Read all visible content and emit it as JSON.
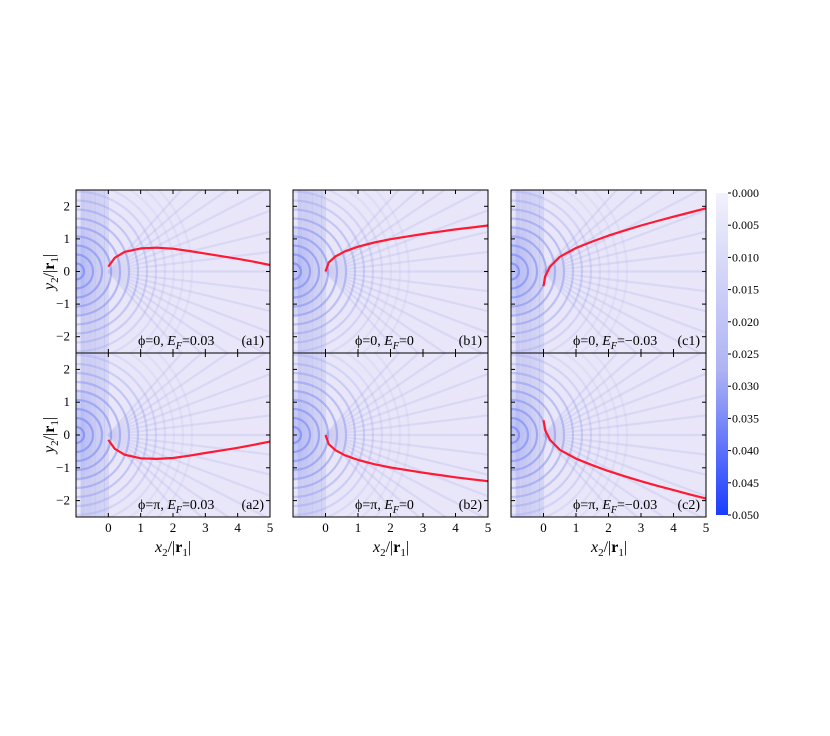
{
  "chart_data": [
    {
      "id": "a1",
      "type": "heatmap",
      "panel_label": "(a1)",
      "annotation": "ϕ=0, E_F=0.03",
      "phi": "0",
      "ef": "0.03",
      "xlim": [
        -1,
        5
      ],
      "ylim": [
        -2.5,
        2.5
      ],
      "x_ticks": [],
      "y_ticks": [
        "-2",
        "-1",
        "0",
        "1",
        "2"
      ],
      "series": [
        {
          "type": "line",
          "color": "#ff1a33",
          "x": [
            0,
            0.2,
            0.5,
            1.0,
            1.5,
            2.0,
            2.5,
            3.0,
            3.5,
            4.0,
            4.5,
            5.0
          ],
          "y": [
            0.15,
            0.42,
            0.6,
            0.71,
            0.73,
            0.7,
            0.63,
            0.55,
            0.47,
            0.39,
            0.3,
            0.2
          ]
        }
      ]
    },
    {
      "id": "a2",
      "type": "heatmap",
      "panel_label": "(a2)",
      "annotation": "ϕ=π, E_F=0.03",
      "phi": "π",
      "ef": "0.03",
      "xlim": [
        -1,
        5
      ],
      "ylim": [
        -2.5,
        2.5
      ],
      "x_ticks": [
        "0",
        "1",
        "2",
        "3",
        "4",
        "5"
      ],
      "y_ticks": [
        "-2",
        "-1",
        "0",
        "1",
        "2"
      ],
      "series": [
        {
          "type": "line",
          "color": "#ff1a33",
          "x": [
            0,
            0.2,
            0.5,
            1.0,
            1.5,
            2.0,
            2.5,
            3.0,
            3.5,
            4.0,
            4.5,
            5.0
          ],
          "y": [
            -0.15,
            -0.42,
            -0.6,
            -0.71,
            -0.73,
            -0.7,
            -0.63,
            -0.55,
            -0.47,
            -0.39,
            -0.3,
            -0.2
          ]
        }
      ]
    },
    {
      "id": "b1",
      "type": "heatmap",
      "panel_label": "(b1)",
      "annotation": "ϕ=0, E_F=0",
      "phi": "0",
      "ef": "0",
      "xlim": [
        -1,
        5
      ],
      "ylim": [
        -2.5,
        2.5
      ],
      "x_ticks": [],
      "y_ticks": [],
      "series": [
        {
          "type": "line",
          "color": "#ff1a33",
          "x": [
            0,
            0.1,
            0.3,
            0.6,
            1.0,
            1.5,
            2.0,
            2.5,
            3.0,
            3.5,
            4.0,
            4.5,
            5.0
          ],
          "y": [
            0.0,
            0.28,
            0.46,
            0.62,
            0.76,
            0.89,
            0.99,
            1.07,
            1.15,
            1.22,
            1.29,
            1.35,
            1.41
          ]
        }
      ]
    },
    {
      "id": "b2",
      "type": "heatmap",
      "panel_label": "(b2)",
      "annotation": "ϕ=π, E_F=0",
      "phi": "π",
      "ef": "0",
      "xlim": [
        -1,
        5
      ],
      "ylim": [
        -2.5,
        2.5
      ],
      "x_ticks": [
        "0",
        "1",
        "2",
        "3",
        "4",
        "5"
      ],
      "y_ticks": [],
      "series": [
        {
          "type": "line",
          "color": "#ff1a33",
          "x": [
            0,
            0.1,
            0.3,
            0.6,
            1.0,
            1.5,
            2.0,
            2.5,
            3.0,
            3.5,
            4.0,
            4.5,
            5.0
          ],
          "y": [
            0.0,
            -0.28,
            -0.46,
            -0.62,
            -0.76,
            -0.89,
            -0.99,
            -1.07,
            -1.15,
            -1.22,
            -1.29,
            -1.35,
            -1.41
          ]
        }
      ]
    },
    {
      "id": "c1",
      "type": "heatmap",
      "panel_label": "(c1)",
      "annotation": "ϕ=0, E_F= −0.03",
      "phi": "0",
      "ef": "−0.03",
      "xlim": [
        -1,
        5
      ],
      "ylim": [
        -2.5,
        2.5
      ],
      "x_ticks": [],
      "y_ticks": [],
      "series": [
        {
          "type": "line",
          "color": "#ff1a33",
          "x": [
            0,
            0.05,
            0.2,
            0.5,
            1.0,
            1.5,
            2.0,
            2.5,
            3.0,
            3.5,
            4.0,
            4.5,
            5.0
          ],
          "y": [
            -0.45,
            -0.15,
            0.15,
            0.45,
            0.72,
            0.92,
            1.1,
            1.26,
            1.41,
            1.55,
            1.68,
            1.81,
            1.94
          ]
        }
      ]
    },
    {
      "id": "c2",
      "type": "heatmap",
      "panel_label": "(c2)",
      "annotation": "ϕ=π, E_F= −0.03",
      "phi": "π",
      "ef": "−0.03",
      "xlim": [
        -1,
        5
      ],
      "ylim": [
        -2.5,
        2.5
      ],
      "x_ticks": [
        "0",
        "1",
        "2",
        "3",
        "4",
        "5"
      ],
      "y_ticks": [],
      "series": [
        {
          "type": "line",
          "color": "#ff1a33",
          "x": [
            0,
            0.05,
            0.2,
            0.5,
            1.0,
            1.5,
            2.0,
            2.5,
            3.0,
            3.5,
            4.0,
            4.5,
            5.0
          ],
          "y": [
            0.45,
            0.15,
            -0.15,
            -0.45,
            -0.72,
            -0.92,
            -1.1,
            -1.26,
            -1.41,
            -1.55,
            -1.68,
            -1.81,
            -1.94
          ]
        }
      ]
    }
  ],
  "axes": {
    "xlabel_var": "x",
    "ylabel_var": "y",
    "label_sub": "2",
    "label_sep": "/|",
    "label_bold": "r",
    "label_bold_sub": "1",
    "label_close": "|",
    "ef_symbol": "E",
    "ef_sub": "F",
    "annotation_sep": ", ",
    "ef_eq": "="
  },
  "colorbar": {
    "min": 0.0,
    "max": 0.05,
    "ticks": [
      "0.000",
      "0.005",
      "0.010",
      "0.015",
      "0.020",
      "0.025",
      "0.030",
      "0.035",
      "0.040",
      "0.045",
      "0.050"
    ],
    "color_low": "#f2f1fc",
    "color_high": "#1a3cff"
  }
}
